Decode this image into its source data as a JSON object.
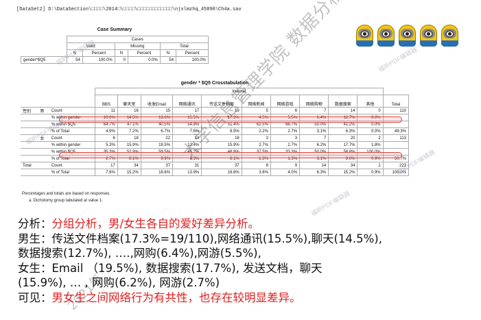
{
  "dataset_line": "[DataSet2] D:\\DataSection\\□□□□\\2014□\\□□□□\\□□□□□□□□□□□□\\njxlmzhq_45890\\Ch4a.sav",
  "case_summary": {
    "title": "Case Summary",
    "group_header": "Cases",
    "headers": [
      "Valid",
      "Missing",
      "Total"
    ],
    "subheaders": [
      "N",
      "Percent",
      "N",
      "Percent",
      "N",
      "Percent"
    ],
    "row_label": "gender*$Q5",
    "row_values": [
      "54",
      "100.0%",
      "0",
      "0.0%",
      "54",
      "100.0%"
    ]
  },
  "crosstab": {
    "title": "gender * $Q5 Crosstabulation",
    "group_header": "Internet",
    "columns": [
      "BBS",
      "聊天室",
      "收发Email",
      "网络通讯",
      "传送文件档案",
      "网络新闻",
      "网络游戏",
      "网络购物",
      "数据搜索",
      "其他",
      "Total"
    ],
    "row_header": "性别",
    "male_label": "男",
    "female_label": "女",
    "total_label": "Total",
    "measures": [
      "Count",
      "% within gender",
      "% within $Q5",
      "% of Total"
    ],
    "male": [
      [
        "11",
        "16",
        "15",
        "17",
        "19",
        "5",
        "6",
        "7",
        "14",
        "0",
        "110"
      ],
      [
        "10.0%",
        "14.5%",
        "13.6%",
        "15.5%",
        "17.3%",
        "4.5%",
        "5.5%",
        "6.4%",
        "12.7%",
        "0.0%",
        ""
      ],
      [
        "64.7%",
        "47.1%",
        "40.5%",
        "54.8%",
        "51.4%",
        "62.5%",
        "66.7%",
        "50.0%",
        "41.2%",
        "0.0%",
        ""
      ],
      [
        "4.9%",
        "7.2%",
        "6.7%",
        "7.6%",
        "8.5%",
        "2.2%",
        "2.7%",
        "3.1%",
        "6.3%",
        "0.0%",
        "49.3%"
      ]
    ],
    "female": [
      [
        "6",
        "18",
        "22",
        "14",
        "18",
        "3",
        "3",
        "7",
        "20",
        "2",
        "113"
      ],
      [
        "5.3%",
        "15.9%",
        "19.5%",
        "12.4%",
        "15.9%",
        "2.7%",
        "2.7%",
        "6.2%",
        "17.7%",
        "1.8%",
        ""
      ],
      [
        "35.3%",
        "52.9%",
        "59.5%",
        "45.2%",
        "48.6%",
        "37.5%",
        "33.3%",
        "50.0%",
        "58.8%",
        "100.0%",
        ""
      ],
      [
        "2.7%",
        "8.1%",
        "9.9%",
        "6.3%",
        "8.1%",
        "1.3%",
        "1.3%",
        "3.1%",
        "9.0%",
        "0.9%",
        "50.7%"
      ]
    ],
    "total_measures": [
      "Count",
      "% of Total"
    ],
    "total": [
      [
        "17",
        "34",
        "37",
        "31",
        "37",
        "8",
        "9",
        "14",
        "34",
        "2",
        "223"
      ],
      [
        "7.6%",
        "15.2%",
        "16.6%",
        "13.9%",
        "16.6%",
        "3.6%",
        "4.0%",
        "6.3%",
        "15.2%",
        "0.9%",
        "100.0%"
      ]
    ],
    "footnote_1": "Percentages and totals are based on responses.",
    "footnote_2": "a. Dichotomy group tabulated at value 1."
  },
  "watermark_text": "福昕PDF编辑器",
  "overlay_text": "大学信息管理学院 数据分析与决策",
  "overlay_text_2": "2021年",
  "analysis": {
    "l1_label": "分析：",
    "l1_red": "分组分析，男/女生各自的爱好差异分析。",
    "l2": "男生：传送文件档案(17.3%=19/110),网络通讯(15.5%),聊天(14.5%),",
    "l3": "数据搜索(12.7%), ….,网购(6.4%),网游(5.5%),",
    "l4": "女生：Email （19.5%), 数据搜索(17.7%), 发送文档，聊天",
    "l5": "(15.9%), … , 网购(6.2%), 网游(2.7%)",
    "l6_label": "可见：",
    "l6_red": "男女生之间网络行为有共性，也存在较明显差异。"
  },
  "colors": {
    "highlight": "#e43e3e",
    "red_text": "#e02020"
  }
}
